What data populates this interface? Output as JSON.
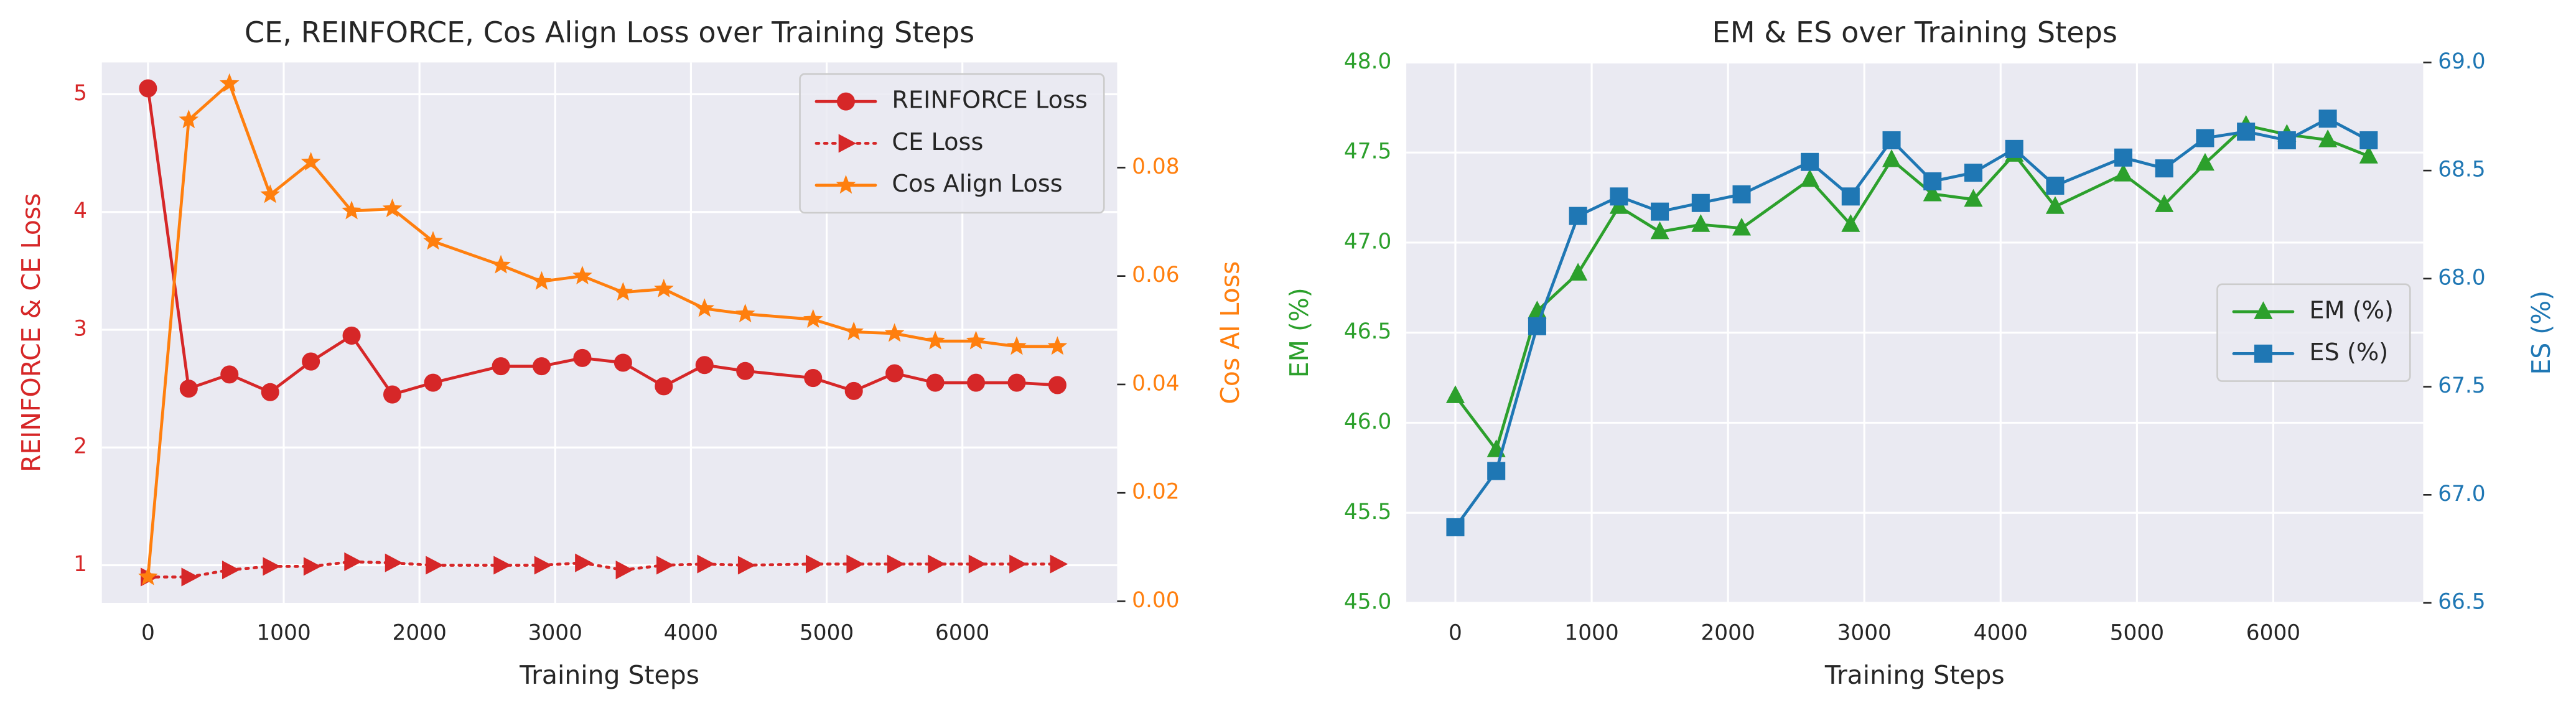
{
  "chart_data": [
    {
      "type": "line",
      "title": "CE, REINFORCE, Cos Align Loss over Training Steps",
      "xlabel": "Training Steps",
      "ylabel": "REINFORCE & CE Loss",
      "y2label": "Cos Al Loss",
      "x": [
        0,
        300,
        600,
        900,
        1200,
        1500,
        1800,
        2100,
        2600,
        2900,
        3200,
        3500,
        3800,
        4100,
        4400,
        4900,
        5200,
        5500,
        5800,
        6100,
        6400,
        6700
      ],
      "xlim": [
        -340,
        7140
      ],
      "xticks": [
        0,
        1000,
        2000,
        3000,
        4000,
        5000,
        6000
      ],
      "ylim": [
        0.68,
        5.27
      ],
      "yticks": [
        1,
        2,
        3,
        4,
        5
      ],
      "y2lim": [
        -0.0003,
        0.0994
      ],
      "y2ticks": [
        {
          "value": 0,
          "label": "0.00"
        },
        {
          "value": 0.02,
          "label": "0.02"
        },
        {
          "value": 0.04,
          "label": "0.04"
        },
        {
          "value": 0.06,
          "label": "0.06"
        },
        {
          "value": 0.08,
          "label": "0.08"
        }
      ],
      "grid": true,
      "legend": "upper right",
      "series": [
        {
          "name": "REINFORCE Loss",
          "color": "#d62728",
          "marker": "circle",
          "linestyle": "solid",
          "axis": "y",
          "values": [
            5.05,
            2.5,
            2.62,
            2.47,
            2.73,
            2.95,
            2.45,
            2.55,
            2.69,
            2.69,
            2.76,
            2.72,
            2.52,
            2.7,
            2.65,
            2.59,
            2.48,
            2.63,
            2.55,
            2.55,
            2.55,
            2.53
          ]
        },
        {
          "name": "CE Loss",
          "color": "#d62728",
          "marker": "triangle-right",
          "linestyle": "dotted",
          "axis": "y",
          "values": [
            0.9,
            0.9,
            0.96,
            0.99,
            0.99,
            1.03,
            1.02,
            1.0,
            1.0,
            1.0,
            1.02,
            0.96,
            1.0,
            1.01,
            1.0,
            1.01,
            1.01,
            1.01,
            1.01,
            1.01,
            1.01,
            1.01
          ]
        },
        {
          "name": "Cos Align Loss",
          "color": "#ff7f0e",
          "marker": "star",
          "linestyle": "solid",
          "axis": "y2",
          "values": [
            0.0045,
            0.0888,
            0.0955,
            0.075,
            0.081,
            0.072,
            0.0724,
            0.0664,
            0.062,
            0.059,
            0.06,
            0.057,
            0.0576,
            0.054,
            0.053,
            0.052,
            0.0497,
            0.0494,
            0.048,
            0.048,
            0.047,
            0.047
          ]
        }
      ]
    },
    {
      "type": "line",
      "title": "EM & ES over Training Steps",
      "xlabel": "Training Steps",
      "ylabel": "EM (%)",
      "y2label": "ES (%)",
      "x": [
        0,
        300,
        600,
        900,
        1200,
        1500,
        1800,
        2100,
        2600,
        2900,
        3200,
        3500,
        3800,
        4100,
        4400,
        4900,
        5200,
        5500,
        5800,
        6100,
        6400,
        6700
      ],
      "xlim": [
        -360,
        7100
      ],
      "xticks": [
        0,
        1000,
        2000,
        3000,
        4000,
        5000,
        6000
      ],
      "ylim": [
        45,
        48
      ],
      "yticks": [
        {
          "value": 45,
          "label": "45.0"
        },
        45.5,
        {
          "value": 46,
          "label": "46.0"
        },
        46.5,
        {
          "value": 47,
          "label": "47.0"
        },
        47.5,
        {
          "value": 48,
          "label": "48.0"
        }
      ],
      "y2lim": [
        66.5,
        69
      ],
      "y2ticks": [
        66.5,
        {
          "value": 67,
          "label": "67.0"
        },
        67.5,
        {
          "value": 68,
          "label": "68.0"
        },
        68.5,
        {
          "value": 69,
          "label": "69.0"
        }
      ],
      "grid": true,
      "legend": "center right",
      "series": [
        {
          "name": "EM (%)",
          "color": "#2ca02c",
          "marker": "triangle-up",
          "linestyle": "solid",
          "axis": "y",
          "values": [
            46.15,
            45.85,
            46.62,
            46.83,
            47.2,
            47.06,
            47.1,
            47.08,
            47.35,
            47.1,
            47.46,
            47.27,
            47.24,
            47.49,
            47.2,
            47.38,
            47.21,
            47.44,
            47.65,
            47.6,
            47.57,
            47.48
          ]
        },
        {
          "name": "ES (%)",
          "color": "#1f77b4",
          "marker": "square",
          "linestyle": "solid",
          "axis": "y2",
          "values": [
            66.85,
            67.11,
            67.78,
            68.29,
            68.38,
            68.31,
            68.35,
            68.39,
            68.54,
            68.38,
            68.64,
            68.45,
            68.49,
            68.6,
            68.43,
            68.56,
            68.51,
            68.65,
            68.68,
            68.64,
            68.74,
            68.64
          ]
        }
      ]
    }
  ]
}
